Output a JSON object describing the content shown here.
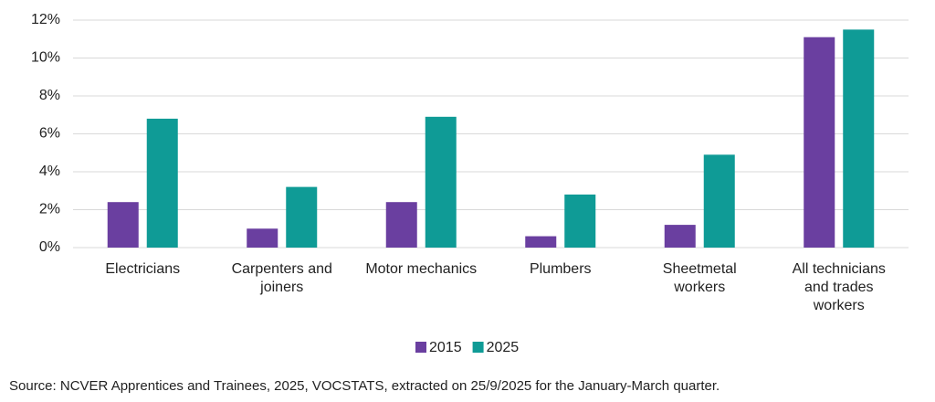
{
  "chart_data": {
    "type": "bar",
    "categories": [
      "Electricians",
      "Carpenters and joiners",
      "Motor mechanics",
      "Plumbers",
      "Sheetmetal workers",
      "All technicians and trades workers"
    ],
    "series": [
      {
        "name": "2015",
        "color": "#6a3fa0",
        "values": [
          2.4,
          1.0,
          2.4,
          0.6,
          1.2,
          11.1
        ]
      },
      {
        "name": "2025",
        "color": "#0f9b96",
        "values": [
          6.8,
          3.2,
          6.9,
          2.8,
          4.9,
          11.5
        ]
      }
    ],
    "ylim": [
      0,
      12
    ],
    "yticks": [
      {
        "value": 0,
        "label": "0%"
      },
      {
        "value": 2,
        "label": "2%"
      },
      {
        "value": 4,
        "label": "4%"
      },
      {
        "value": 6,
        "label": "6%"
      },
      {
        "value": 8,
        "label": "8%"
      },
      {
        "value": 10,
        "label": "10%"
      },
      {
        "value": 12,
        "label": "12%"
      }
    ],
    "grid": true,
    "legend": "bottom",
    "source": "Source: NCVER Apprentices and Trainees, 2025, VOCSTATS, extracted on 25/9/2025 for the January-March quarter."
  }
}
